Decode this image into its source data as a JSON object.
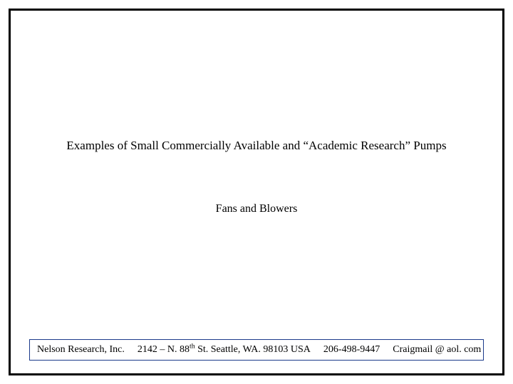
{
  "slide": {
    "title": "Examples of Small Commercially Available and “Academic Research” Pumps",
    "subtitle": "Fans and Blowers"
  },
  "footer": {
    "company": "Nelson Research, Inc.",
    "address_pre": "2142 – N. 88",
    "address_sup": "th",
    "address_post": " St. Seattle, WA. 98103  USA",
    "phone": "206-498-9447",
    "email": "Craigmail @ aol. com"
  },
  "colors": {
    "frame_border": "#000000",
    "footer_border": "#1a3a8a",
    "background": "#ffffff",
    "text": "#000000"
  },
  "typography": {
    "font_family": "Times New Roman",
    "title_fontsize": 17,
    "subtitle_fontsize": 16,
    "footer_fontsize": 14
  }
}
